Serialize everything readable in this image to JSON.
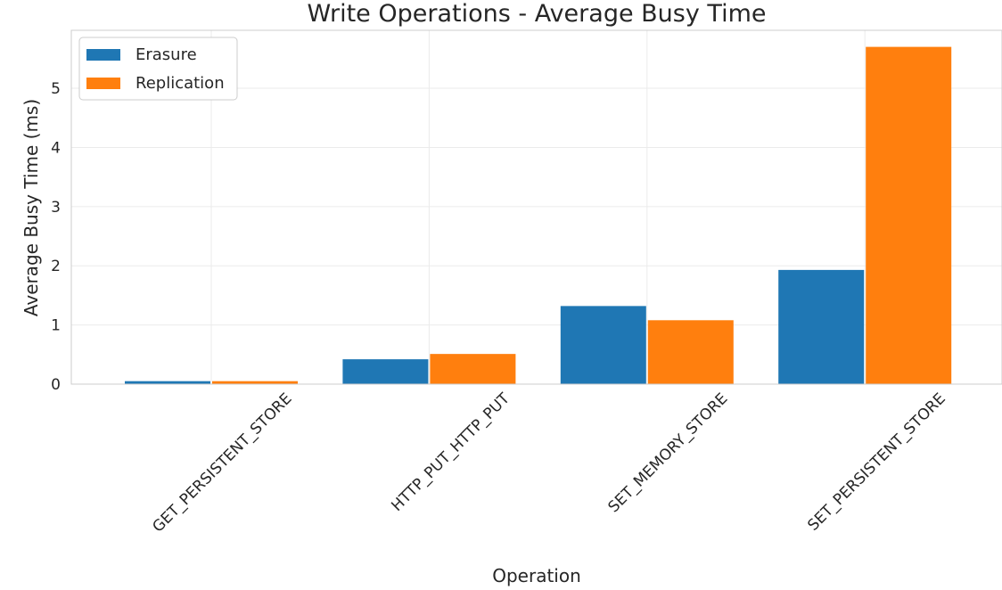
{
  "chart_data": {
    "type": "bar",
    "title": "Write Operations - Average Busy Time",
    "xlabel": "Operation",
    "ylabel": "Average Busy Time (ms)",
    "categories": [
      "GET_PERSISTENT_STORE",
      "HTTP_PUT_HTTP_PUT",
      "SET_MEMORY_STORE",
      "SET_PERSISTENT_STORE"
    ],
    "series": [
      {
        "name": "Erasure",
        "color": "#1f77b4",
        "values": [
          0.05,
          0.42,
          1.32,
          1.93
        ]
      },
      {
        "name": "Replication",
        "color": "#ff7f0e",
        "values": [
          0.05,
          0.51,
          1.08,
          5.7
        ]
      }
    ],
    "ylim": [
      0,
      5.98
    ],
    "yticks": [
      0,
      1,
      2,
      3,
      4,
      5
    ],
    "grid": true,
    "legend_position": "top-left"
  }
}
